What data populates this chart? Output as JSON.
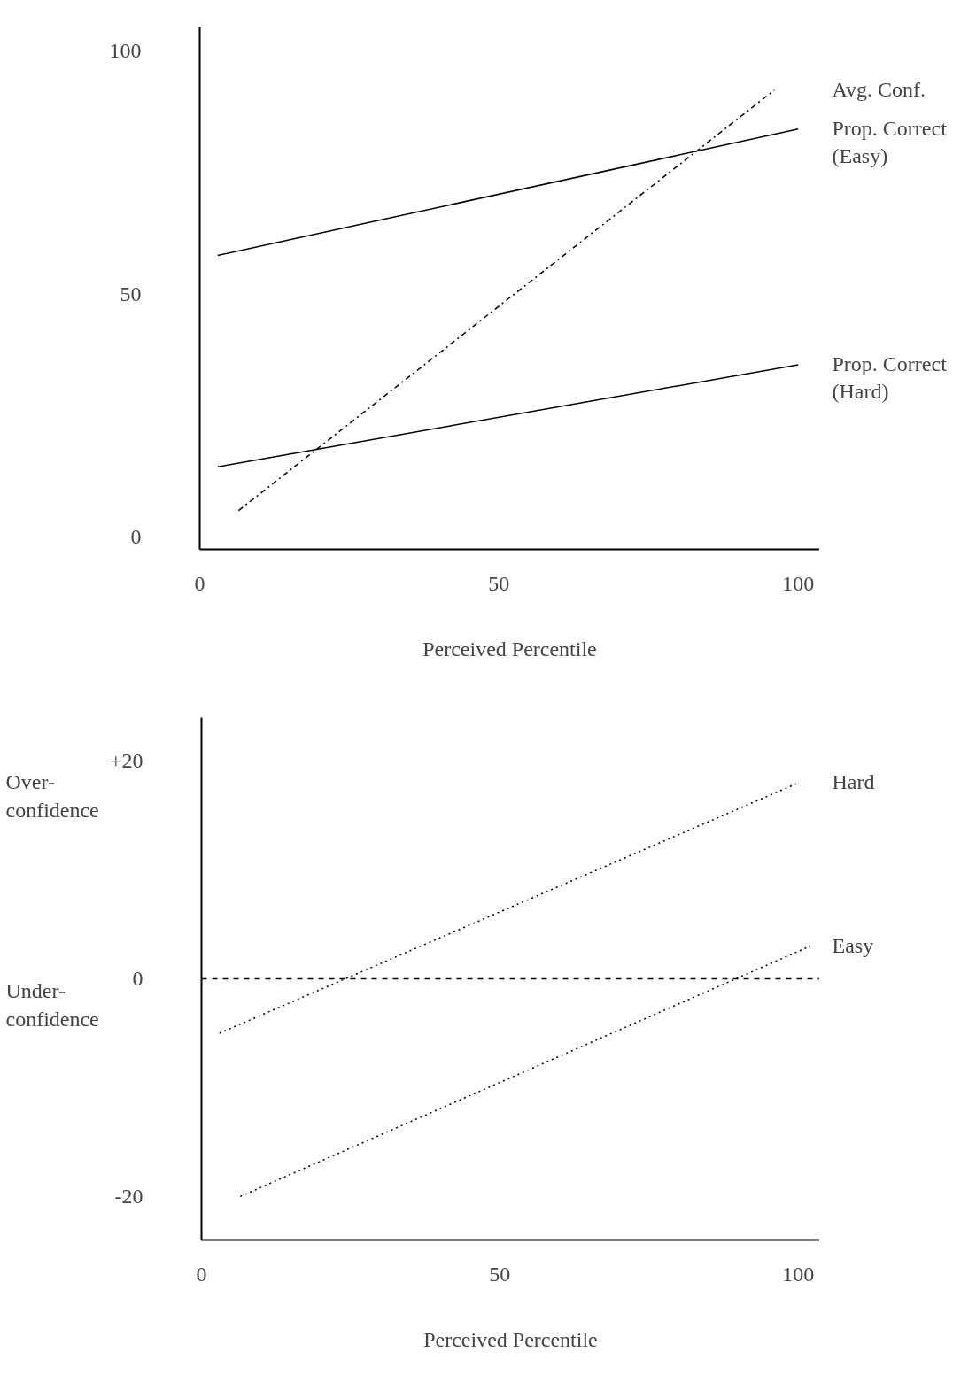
{
  "chart_data": [
    {
      "type": "line",
      "xlabel": "Perceived Percentile",
      "xlim": [
        0,
        103.6
      ],
      "ylim": [
        -2.5,
        105
      ],
      "xticks": [
        0,
        50,
        100
      ],
      "yticks": [
        0,
        50,
        100
      ],
      "legend": false,
      "marker": "none",
      "series": [
        {
          "name": "Prop. Correct\n(Easy)",
          "color": "#000000",
          "line_style": "solid",
          "x": [
            3,
            100
          ],
          "values": [
            58,
            84
          ]
        },
        {
          "name": "Prop. Correct\n(Hard)",
          "color": "#000000",
          "line_style": "solid",
          "x": [
            3,
            100
          ],
          "values": [
            14.5,
            35.5
          ]
        },
        {
          "name": "Avg. Conf.",
          "color": "#000000",
          "line_style": "dashdot",
          "x": [
            6.5,
            96
          ],
          "values": [
            5.5,
            92
          ]
        }
      ]
    },
    {
      "type": "line",
      "xlabel": "Perceived Percentile",
      "xlim": [
        0,
        103.6
      ],
      "ylim": [
        -24,
        24
      ],
      "xticks": [
        0,
        50,
        100
      ],
      "yticks": [
        {
          "value": 20,
          "label": "+20"
        },
        0,
        -20
      ],
      "legend": false,
      "marker": "none",
      "ref_lines": [
        {
          "axis": "y",
          "value": 0,
          "label": null,
          "color": "#000000",
          "line_style": "dashed"
        }
      ],
      "annotations": [
        "Over-\nconfidence",
        "Under-\nconfidence"
      ],
      "series": [
        {
          "name": "Hard",
          "color": "#000000",
          "line_style": "dotted",
          "x": [
            3,
            100
          ],
          "values": [
            -5,
            18
          ]
        },
        {
          "name": "Easy",
          "color": "#000000",
          "line_style": "dotted",
          "x": [
            6.5,
            102
          ],
          "values": [
            -20,
            3
          ]
        }
      ]
    }
  ]
}
